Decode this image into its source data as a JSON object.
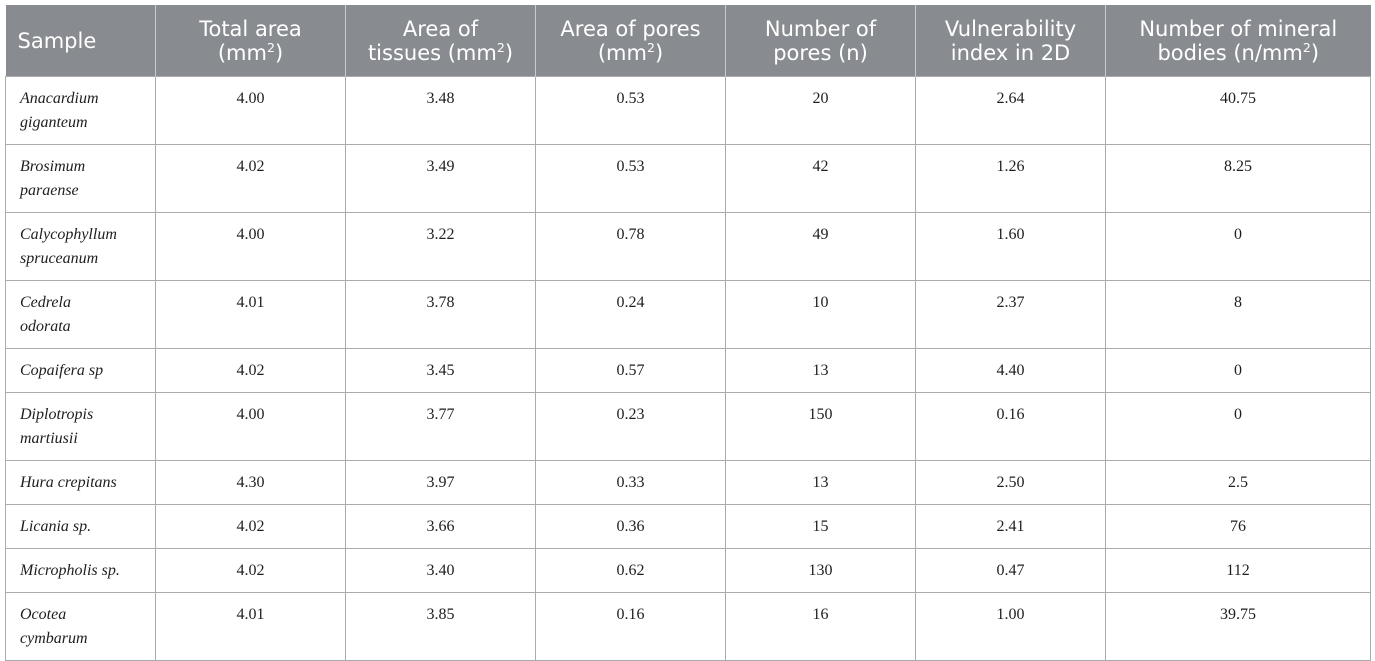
{
  "table": {
    "headers": [
      {
        "line1": "Sample",
        "line2": "",
        "sup": "",
        "after": ""
      },
      {
        "line1": "Total area",
        "line2": "(mm",
        "sup": "2",
        "after": ")"
      },
      {
        "line1": "Area of",
        "line2": "tissues (mm",
        "sup": "2",
        "after": ")"
      },
      {
        "line1": "Area of pores",
        "line2": "(mm",
        "sup": "2",
        "after": ")"
      },
      {
        "line1": "Number of",
        "line2": "pores (n)",
        "sup": "",
        "after": ""
      },
      {
        "line1": "Vulnerability",
        "line2": "index in 2D",
        "sup": "",
        "after": ""
      },
      {
        "line1": "Number of mineral",
        "line2": "bodies (n/mm",
        "sup": "2",
        "after": ")"
      }
    ],
    "rows": [
      {
        "sample_l1": "Anacardium",
        "sample_l2": "giganteum",
        "total_area": "4.00",
        "tissues": "3.48",
        "pores_area": "0.53",
        "pores_n": "20",
        "vuln": "2.64",
        "mineral": "40.75"
      },
      {
        "sample_l1": "Brosimum",
        "sample_l2": "paraense",
        "total_area": "4.02",
        "tissues": "3.49",
        "pores_area": "0.53",
        "pores_n": "42",
        "vuln": "1.26",
        "mineral": "8.25"
      },
      {
        "sample_l1": "Calycophyllum",
        "sample_l2": "spruceanum",
        "total_area": "4.00",
        "tissues": "3.22",
        "pores_area": "0.78",
        "pores_n": "49",
        "vuln": "1.60",
        "mineral": "0"
      },
      {
        "sample_l1": "Cedrela",
        "sample_l2": "odorata",
        "total_area": "4.01",
        "tissues": "3.78",
        "pores_area": "0.24",
        "pores_n": "10",
        "vuln": "2.37",
        "mineral": "8"
      },
      {
        "sample_l1": "Copaifera sp",
        "sample_l2": "",
        "total_area": "4.02",
        "tissues": "3.45",
        "pores_area": "0.57",
        "pores_n": "13",
        "vuln": "4.40",
        "mineral": "0"
      },
      {
        "sample_l1": "Diplotropis",
        "sample_l2": "martiusii",
        "total_area": "4.00",
        "tissues": "3.77",
        "pores_area": "0.23",
        "pores_n": "150",
        "vuln": "0.16",
        "mineral": "0"
      },
      {
        "sample_l1": "Hura crepitans",
        "sample_l2": "",
        "total_area": "4.30",
        "tissues": "3.97",
        "pores_area": "0.33",
        "pores_n": "13",
        "vuln": "2.50",
        "mineral": "2.5"
      },
      {
        "sample_l1": "Licania sp.",
        "sample_l2": "",
        "total_area": "4.02",
        "tissues": "3.66",
        "pores_area": "0.36",
        "pores_n": "15",
        "vuln": "2.41",
        "mineral": "76"
      },
      {
        "sample_l1": "Micropholis sp.",
        "sample_l2": "",
        "total_area": "4.02",
        "tissues": "3.40",
        "pores_area": "0.62",
        "pores_n": "130",
        "vuln": "0.47",
        "mineral": "112"
      },
      {
        "sample_l1": "Ocotea",
        "sample_l2": "cymbarum",
        "total_area": "4.01",
        "tissues": "3.85",
        "pores_area": "0.16",
        "pores_n": "16",
        "vuln": "1.00",
        "mineral": "39.75"
      }
    ]
  }
}
